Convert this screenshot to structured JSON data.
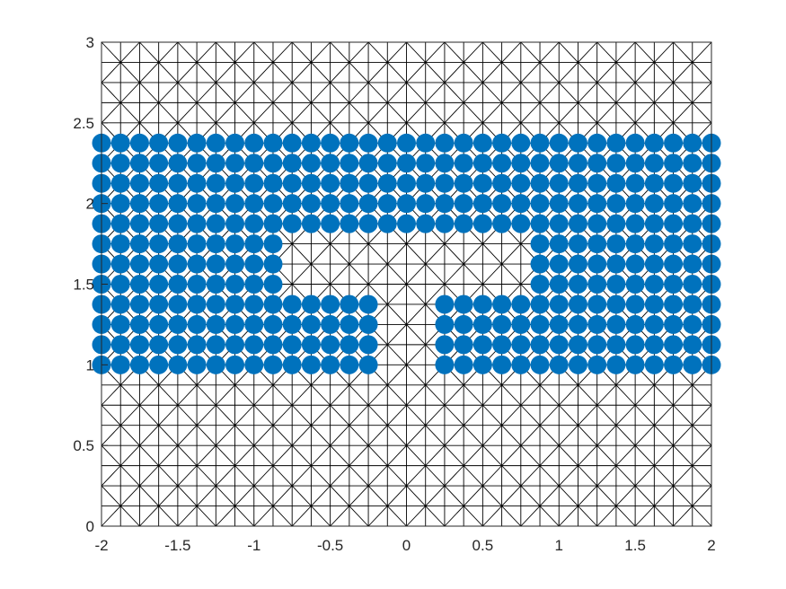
{
  "chart_data": {
    "type": "scatter",
    "title": "",
    "xlabel": "",
    "ylabel": "",
    "xlim": [
      -2,
      2
    ],
    "ylim": [
      0,
      3
    ],
    "grid": false,
    "legend": "none",
    "x_tick_labels": [
      "-2",
      "-1.5",
      "-1",
      "-0.5",
      "0",
      "0.5",
      "1",
      "1.5",
      "2"
    ],
    "x_tick_values": [
      -2,
      -1.5,
      -1,
      -0.5,
      0,
      0.5,
      1,
      1.5,
      2
    ],
    "y_tick_labels": [
      "0",
      "0.5",
      "1",
      "1.5",
      "2",
      "2.5",
      "3"
    ],
    "y_tick_values": [
      0,
      0.5,
      1,
      1.5,
      2,
      2.5,
      3
    ],
    "mesh": {
      "x_divisions": 32,
      "y_divisions": 24,
      "x_range": [
        -2,
        2
      ],
      "y_range": [
        0,
        3
      ],
      "color": "#000000"
    },
    "marker_color": "#0072BD",
    "series": [
      {
        "name": "",
        "points_x_values": [
          -2,
          -1.875,
          -1.75,
          -1.625,
          -1.5,
          -1.375,
          -1.25,
          -1.125,
          -1,
          -0.875,
          -0.75,
          -0.625,
          -0.5,
          -0.375,
          -0.25,
          -0.125,
          0,
          0.125,
          0.25,
          0.375,
          0.5,
          0.625,
          0.75,
          0.875,
          1,
          1.125,
          1.25,
          1.375,
          1.5,
          1.625,
          1.75,
          1.875,
          2
        ],
        "rows": [
          {
            "y": 2.375,
            "x_ranges": [
              [
                -2,
                2
              ]
            ]
          },
          {
            "y": 2.25,
            "x_ranges": [
              [
                -2,
                2
              ]
            ]
          },
          {
            "y": 2.125,
            "x_ranges": [
              [
                -2,
                2
              ]
            ]
          },
          {
            "y": 2.0,
            "x_ranges": [
              [
                -2,
                2
              ]
            ]
          },
          {
            "y": 1.875,
            "x_ranges": [
              [
                -2,
                2
              ]
            ]
          },
          {
            "y": 1.75,
            "x_ranges": [
              [
                -2,
                -0.875
              ],
              [
                0.875,
                2
              ]
            ]
          },
          {
            "y": 1.625,
            "x_ranges": [
              [
                -2,
                -0.875
              ],
              [
                0.875,
                2
              ]
            ]
          },
          {
            "y": 1.5,
            "x_ranges": [
              [
                -2,
                -0.875
              ],
              [
                0.875,
                2
              ]
            ]
          },
          {
            "y": 1.375,
            "x_ranges": [
              [
                -2,
                -0.25
              ],
              [
                0.25,
                2
              ]
            ]
          },
          {
            "y": 1.25,
            "x_ranges": [
              [
                -2,
                -0.25
              ],
              [
                0.25,
                2
              ]
            ]
          },
          {
            "y": 1.125,
            "x_ranges": [
              [
                -2,
                -0.25
              ],
              [
                0.25,
                2
              ]
            ]
          },
          {
            "y": 1.0,
            "x_ranges": [
              [
                -2,
                -0.25
              ],
              [
                0.25,
                2
              ]
            ]
          }
        ]
      }
    ]
  }
}
